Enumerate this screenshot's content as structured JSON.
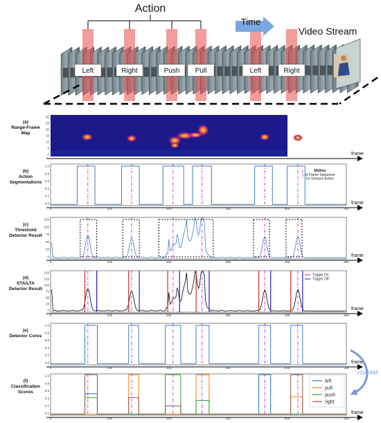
{
  "header": {
    "action_title": "Action",
    "time_label": "Time",
    "stream_label": "Video Stream",
    "actions": [
      "Left",
      "Right",
      "Push",
      "Pull",
      "Left",
      "Right"
    ]
  },
  "colors": {
    "line_blue": "#3b7fc4",
    "midline": "#c03bd0",
    "trigger_on": "#d62728",
    "trigger_off": "#1f1fc9",
    "sta_lta": "#000000",
    "left": "#1f77b4",
    "pull": "#ff7f0e",
    "push": "#2ca02c",
    "right": "#8c564b",
    "heatmap_bg": "#1c1a8a",
    "time_arrow": "#7aa7e0"
  },
  "panels": [
    {
      "id": "a",
      "label_lines": [
        "(a)",
        "Range-Frame",
        "Map"
      ],
      "yticks": [
        "30",
        "25",
        "20",
        "15",
        "10",
        "5",
        "0"
      ]
    },
    {
      "id": "b",
      "label_lines": [
        "(b)",
        "Action",
        "Segmentations"
      ],
      "yticks": [
        "1.0",
        "0.8",
        "0.6",
        "0.4",
        "0.2",
        "0.0"
      ]
    },
    {
      "id": "c",
      "label_lines": [
        "(c)",
        "Threshold",
        "Detector Result"
      ],
      "yticks": [
        "125",
        "100",
        "75",
        "50",
        "25",
        "0"
      ]
    },
    {
      "id": "d",
      "label_lines": [
        "(d)",
        "STA/LTA",
        "Detector Result"
      ],
      "yticks": [
        "150",
        "125",
        "100",
        "75",
        "50",
        "25",
        "0"
      ]
    },
    {
      "id": "e",
      "label_lines": [
        "(e)",
        "Detector Cores"
      ],
      "yticks": [
        "1.0",
        "0.8",
        "0.6",
        "0.4",
        "0.2",
        "0.0"
      ]
    },
    {
      "id": "f",
      "label_lines": [
        "(f)",
        "Classification",
        "Scores"
      ],
      "yticks": [
        "1.0",
        "0.8",
        "0.6",
        "0.4",
        "0.2",
        "0.0"
      ]
    }
  ],
  "xticks": [
    "0",
    "100",
    "200",
    "300",
    "400",
    "500"
  ],
  "x_axis_label": "frame",
  "legend_b": {
    "title": "Midline",
    "subtitle_lines": [
      "of Frame Sequence",
      "for Gesture Action"
    ]
  },
  "legend_d": [
    "Trigger On",
    "Trigger Off"
  ],
  "legend_f": [
    "left",
    "pull",
    "push",
    "right"
  ],
  "ram_label": "+2xRAM",
  "chart_data": {
    "type": "line",
    "x_range": [
      0,
      500
    ],
    "segments": [
      {
        "action": "Left",
        "start": 55,
        "end": 65
      },
      {
        "action": "Right",
        "start": 130,
        "end": 140
      },
      {
        "action": "Push",
        "start": 200,
        "end": 215
      },
      {
        "action": "Pull",
        "start": 250,
        "end": 262
      },
      {
        "action": "Left",
        "start": 355,
        "end": 365
      },
      {
        "action": "Right",
        "start": 410,
        "end": 420
      }
    ],
    "midlines": [
      63,
      137,
      207,
      256,
      362,
      418
    ],
    "threshold_boxes": [
      [
        50,
        78
      ],
      [
        122,
        150
      ],
      [
        183,
        275
      ],
      [
        343,
        370
      ],
      [
        398,
        425
      ]
    ],
    "trigger_on": [
      58,
      132,
      198,
      246,
      352,
      406
    ],
    "trigger_off": [
      78,
      150,
      218,
      268,
      372,
      426
    ],
    "detector_cores": [
      [
        58,
        79
      ],
      [
        132,
        149
      ],
      [
        194,
        220
      ],
      [
        246,
        268
      ],
      [
        352,
        372
      ],
      [
        406,
        426
      ]
    ],
    "classification_series": [
      {
        "name": "left",
        "values": [
          0.52,
          0.03,
          0.03,
          0.03,
          0.98,
          0.03
        ]
      },
      {
        "name": "pull",
        "values": [
          0.03,
          0.98,
          0.03,
          0.98,
          0.03,
          0.45
        ]
      },
      {
        "name": "push",
        "values": [
          0.43,
          0.03,
          0.98,
          0.36,
          0.03,
          0.03
        ]
      },
      {
        "name": "right",
        "values": [
          0.98,
          0.43,
          0.23,
          0.03,
          0.03,
          0.98
        ]
      }
    ]
  }
}
